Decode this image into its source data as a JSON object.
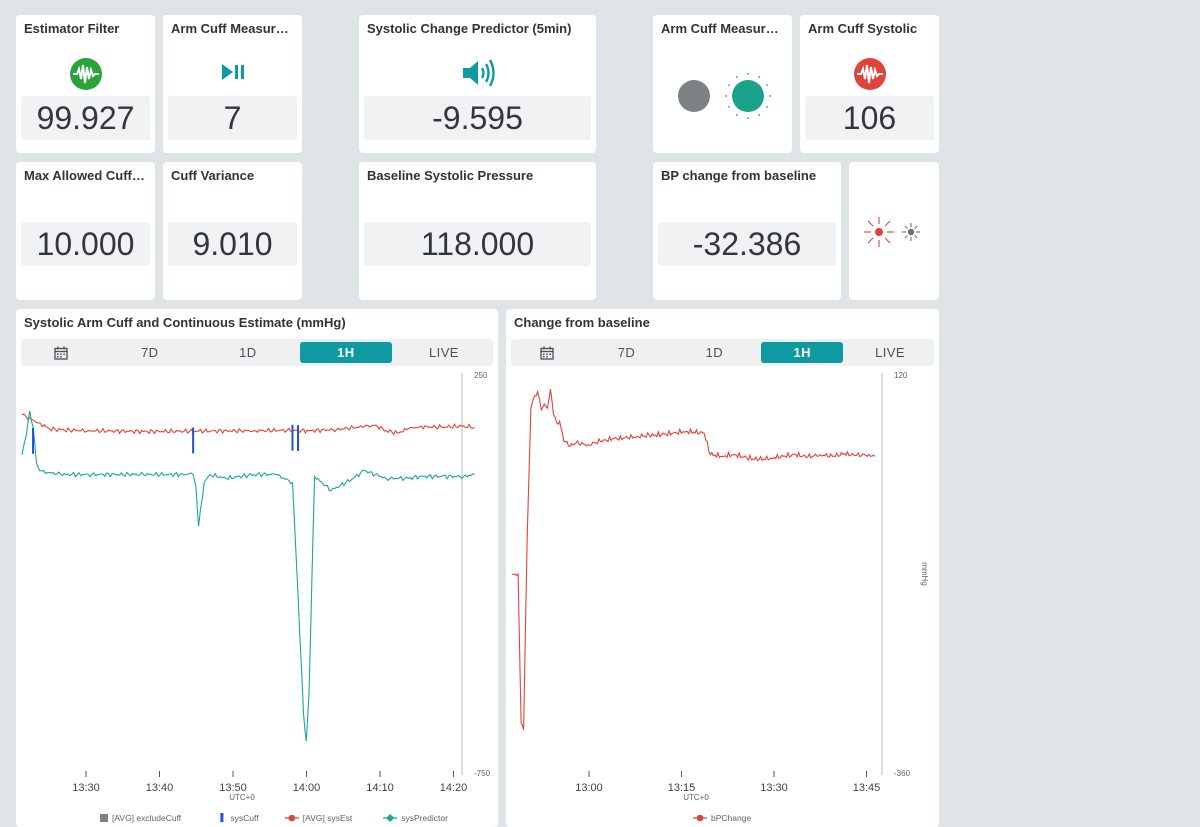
{
  "colors": {
    "accent": "#0e9aa0",
    "red": "#e0433a",
    "teal": "#1aa89a",
    "green": "#2aa43a",
    "gray": "#7c8184",
    "blue": "#2050e0"
  },
  "tiles": {
    "estimator_filter": {
      "title": "Estimator Filter",
      "value": "99.927",
      "icon": "pulse-icon"
    },
    "arm_cuff_measure": {
      "title": "Arm Cuff Measurem...",
      "value": "7",
      "icon": "play-pause-icon"
    },
    "systolic_predictor": {
      "title": "Systolic Change Predictor (5min)",
      "value": "-9.595",
      "icon": "speaker-icon"
    },
    "arm_cuff_status": {
      "title": "Arm Cuff Measurem...",
      "icon": "status-lights-icon"
    },
    "arm_cuff_systolic": {
      "title": "Arm Cuff Systolic",
      "value": "106",
      "icon": "pulse-icon"
    },
    "max_cuff": {
      "title": "Max Allowed Cuff V...",
      "value": "10.000"
    },
    "cuff_variance": {
      "title": "Cuff Variance",
      "value": "9.010"
    },
    "baseline_systolic": {
      "title": "Baseline Systolic Pressure",
      "value": "118.000"
    },
    "bp_change": {
      "title": "BP change from baseline",
      "value": "-32.386"
    },
    "sun_status": {
      "icon": "sun-indicator-icon"
    }
  },
  "tabs": [
    "7D",
    "1D",
    "1H",
    "LIVE"
  ],
  "active_tab": "1H",
  "chart_data": [
    {
      "type": "line",
      "title": "Systolic Arm Cuff and Continuous Estimate (mmHg)",
      "ylim": [
        -750,
        250
      ],
      "y_tick_labels": [
        "250",
        "-750"
      ],
      "x_tick_labels": [
        "13:30",
        "13:40",
        "13:50",
        "14:00",
        "14:10",
        "14:20"
      ],
      "timezone": "UTC+0",
      "legend": [
        "[AVG] excludeCuff",
        "sysCuff",
        "[AVG] sysEst",
        "sysPredictor"
      ],
      "series": [
        {
          "name": "[AVG] sysEst",
          "color": "#e0433a",
          "x_min": [
            -2,
            1,
            3,
            5,
            10,
            20,
            30,
            40,
            46,
            50,
            55,
            58,
            60,
            62,
            64,
            66,
            68,
            70,
            74,
            78,
            80
          ],
          "values": [
            150,
            130,
            115,
            112,
            110,
            108,
            109,
            110,
            111,
            110,
            113,
            118,
            120,
            124,
            110,
            104,
            115,
            120,
            119,
            122,
            118
          ]
        },
        {
          "name": "sysPredictor",
          "color": "#1aa89a",
          "x_min": [
            -2,
            -1.2,
            -0.6,
            0,
            0.6,
            1.2,
            3,
            5,
            10,
            20,
            28,
            29,
            29.5,
            30,
            31,
            32,
            35,
            40,
            44,
            47,
            48,
            49,
            49.5,
            50,
            51,
            54,
            58,
            60,
            62,
            64,
            66,
            68,
            70,
            74,
            78,
            80
          ],
          "values": [
            50,
            100,
            160,
            120,
            30,
            10,
            5,
            0,
            0,
            0,
            0,
            0,
            -30,
            -130,
            -20,
            0,
            -10,
            0,
            0,
            -20,
            -300,
            -600,
            -670,
            -550,
            -5,
            -40,
            -10,
            10,
            0,
            -10,
            -10,
            -10,
            -5,
            -5,
            -5,
            0
          ]
        },
        {
          "name": "sysCuff",
          "color": "#2050e0",
          "x_min": [
            0,
            29,
            47,
            48
          ],
          "values": [
            112,
            113,
            120,
            119
          ]
        }
      ]
    },
    {
      "type": "line",
      "title": "Change from baseline",
      "ylabel": "mmHg",
      "ylim": [
        -360,
        120
      ],
      "y_tick_labels": [
        "120",
        "-360"
      ],
      "x_tick_labels": [
        "13:00",
        "13:15",
        "13:30",
        "13:45"
      ],
      "timezone": "UTC+0",
      "legend": [
        "bPChange"
      ],
      "series": [
        {
          "name": "bPChange",
          "color": "#e0433a",
          "x_min": [
            -10.5,
            -9.5,
            -9,
            -8.6,
            -8,
            -7.4,
            -6.8,
            -6.3,
            -5.7,
            -5.2,
            -4.7,
            -4.2,
            -3.7,
            -3.2,
            -2.7,
            -2,
            -1.5,
            -1,
            0,
            2,
            4,
            6,
            8,
            10,
            12,
            14,
            16,
            18,
            21,
            22,
            24,
            26,
            28,
            30,
            32,
            34,
            36,
            38,
            40,
            42,
            44,
            46,
            48,
            49
          ],
          "values": [
            -120,
            -120,
            -300,
            -308,
            -70,
            80,
            95,
            100,
            78,
            85,
            80,
            103,
            72,
            63,
            64,
            40,
            40,
            34,
            38,
            36,
            40,
            43,
            44,
            46,
            47,
            48,
            50,
            52,
            50,
            24,
            22,
            24,
            20,
            18,
            20,
            22,
            24,
            21,
            24,
            22,
            25,
            23,
            24,
            22
          ]
        }
      ]
    }
  ]
}
